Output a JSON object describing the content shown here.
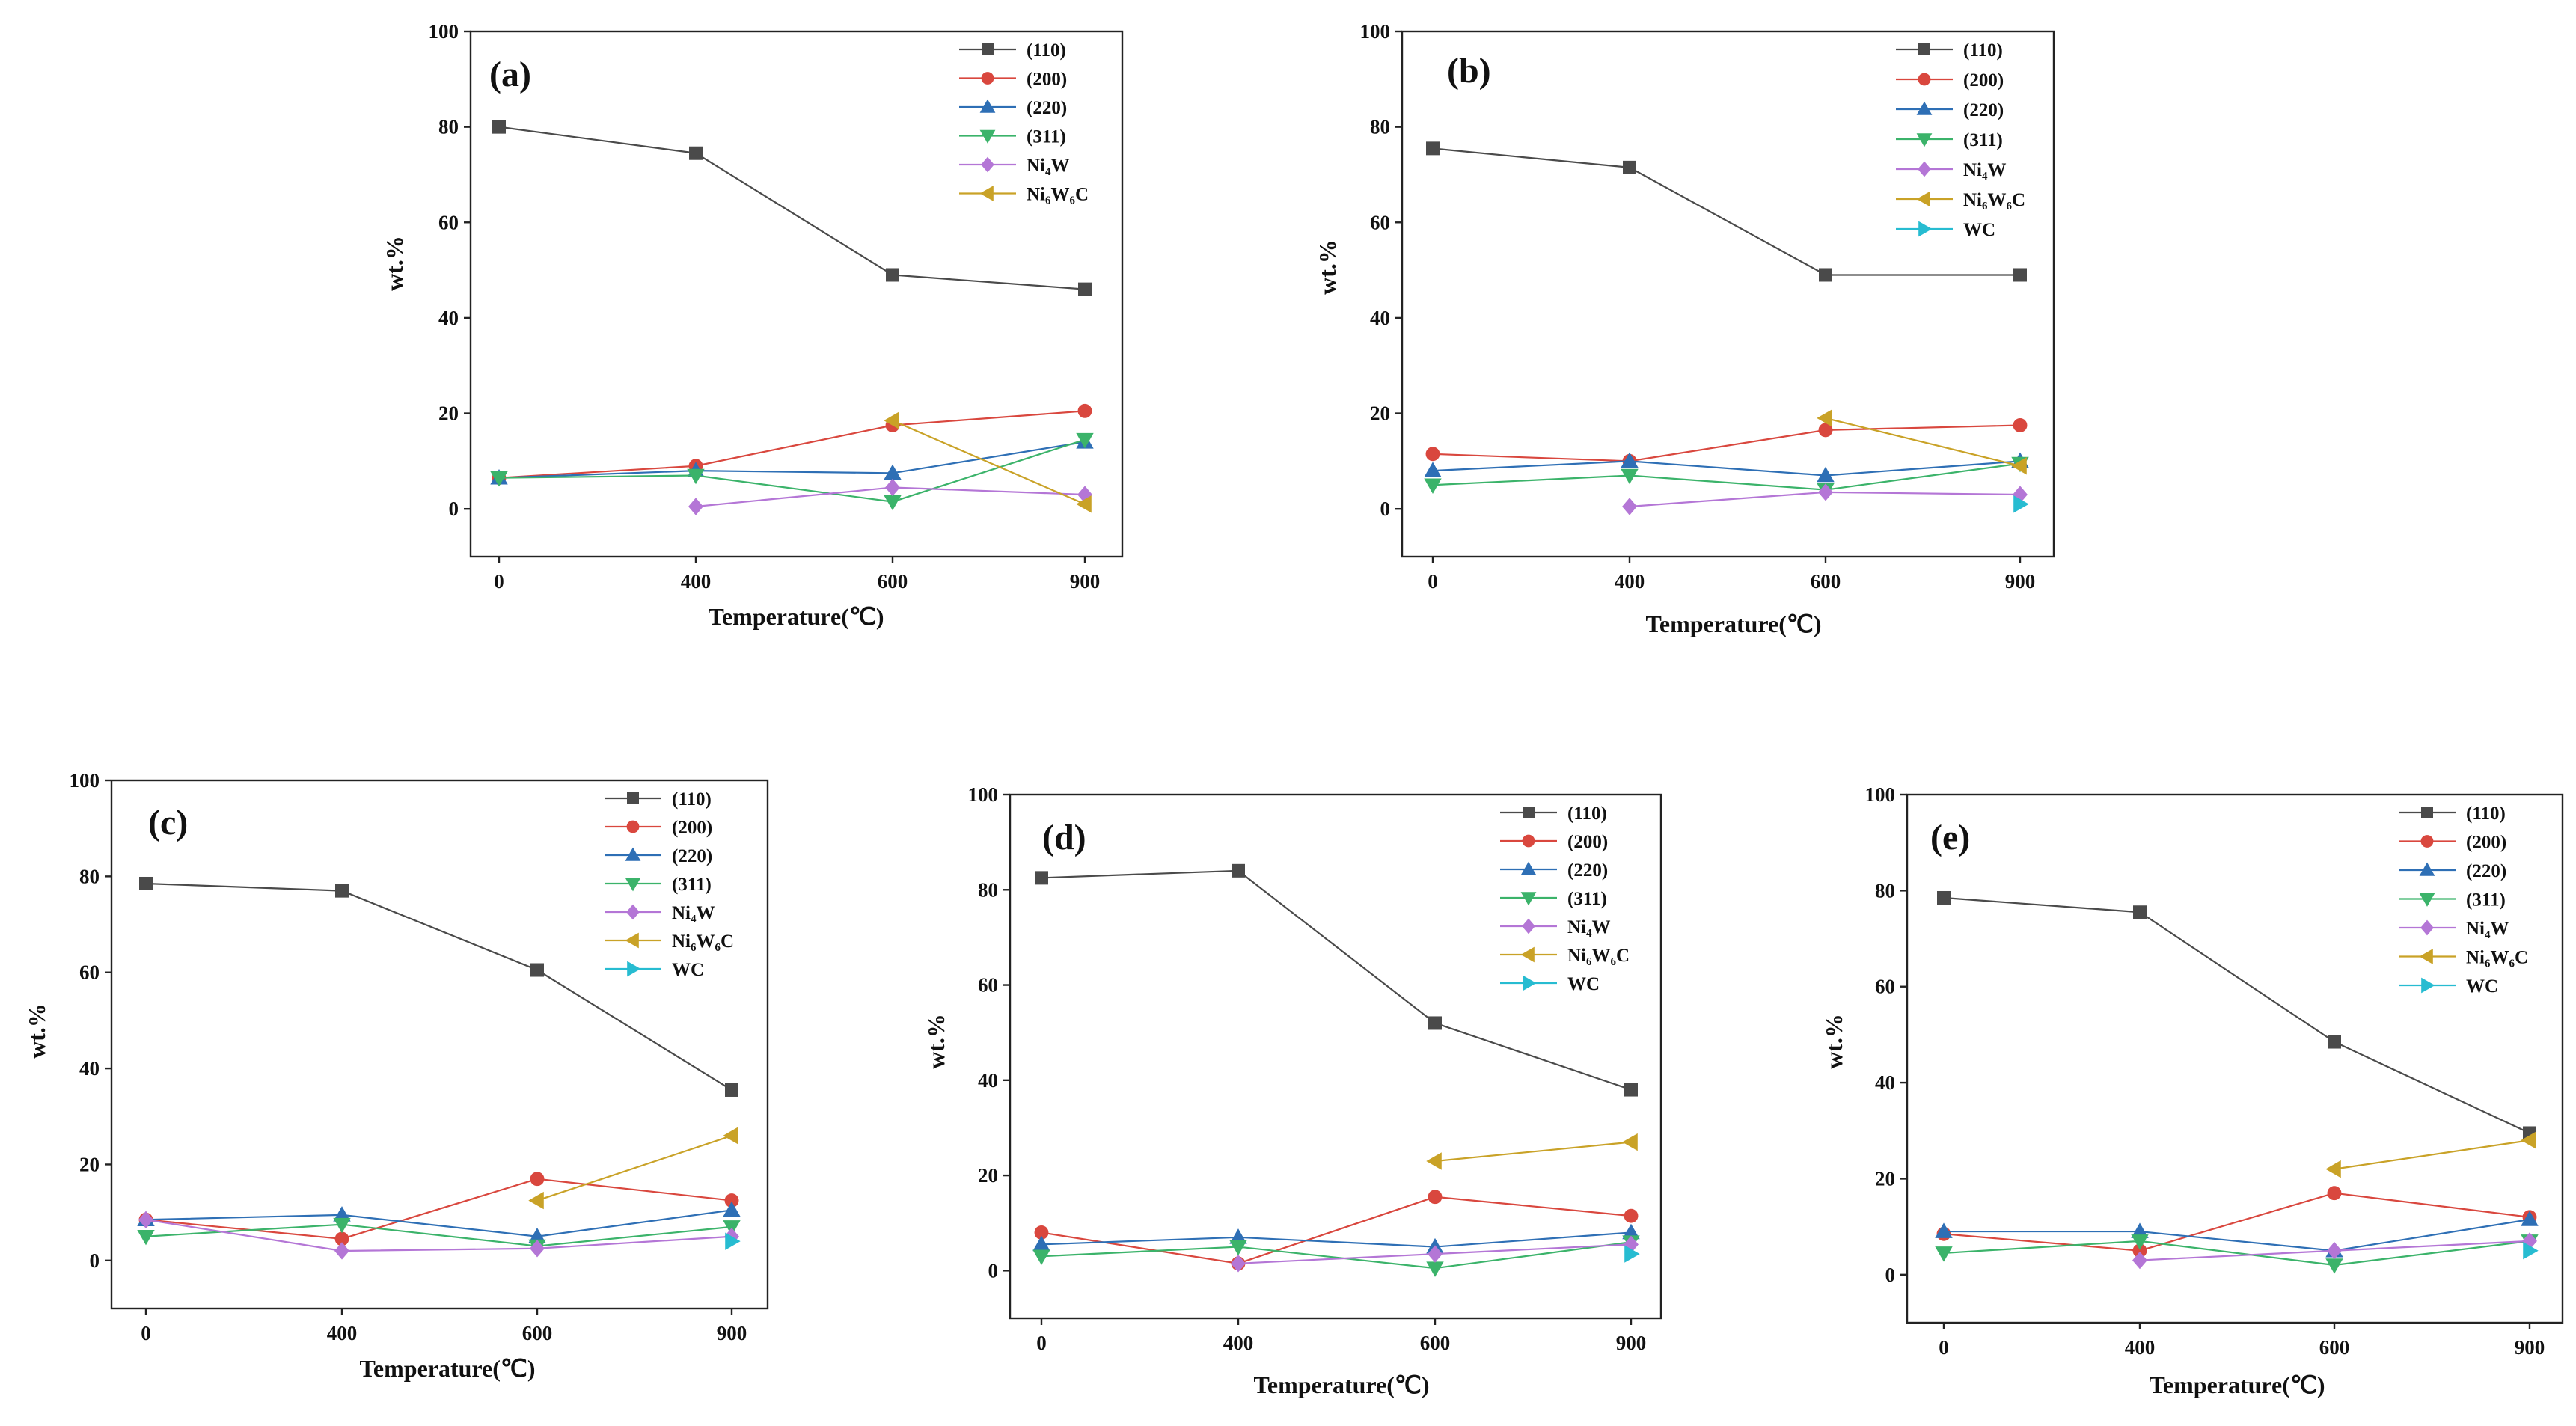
{
  "chart_data": [
    {
      "type": "line",
      "panel_label": "(a)",
      "xlabel": "Temperature(℃)",
      "ylabel": "wt.%",
      "categories": [
        "0",
        "400",
        "600",
        "900"
      ],
      "ylim": [
        -10,
        100
      ],
      "yticks": [
        "0",
        "20",
        "40",
        "60",
        "80",
        "100"
      ],
      "series": [
        {
          "name": "(110)",
          "sub": "",
          "values": [
            80,
            74.5,
            49,
            46
          ]
        },
        {
          "name": "(200)",
          "sub": "",
          "values": [
            6.5,
            9,
            17.5,
            20.5
          ]
        },
        {
          "name": "(220)",
          "sub": "",
          "values": [
            6.5,
            8,
            7.5,
            14
          ]
        },
        {
          "name": "(311)",
          "sub": "",
          "values": [
            6.5,
            7,
            1.5,
            14.5
          ]
        },
        {
          "name": "Ni4W",
          "sub": "Ni₄W",
          "values": [
            null,
            0.5,
            4.5,
            3
          ]
        },
        {
          "name": "Ni6W6C",
          "sub": "Ni₆W₆C",
          "values": [
            null,
            null,
            18.5,
            1
          ]
        }
      ]
    },
    {
      "type": "line",
      "panel_label": "(b)",
      "xlabel": "Temperature(℃)",
      "ylabel": "wt.%",
      "categories": [
        "0",
        "400",
        "600",
        "900"
      ],
      "ylim": [
        -10,
        100
      ],
      "yticks": [
        "0",
        "20",
        "40",
        "60",
        "80",
        "100"
      ],
      "series": [
        {
          "name": "(110)",
          "sub": "",
          "values": [
            75.5,
            71.5,
            49,
            49
          ]
        },
        {
          "name": "(200)",
          "sub": "",
          "values": [
            11.5,
            10,
            16.5,
            17.5
          ]
        },
        {
          "name": "(220)",
          "sub": "",
          "values": [
            8,
            10,
            7,
            10
          ]
        },
        {
          "name": "(311)",
          "sub": "",
          "values": [
            5,
            7,
            4,
            9.5
          ]
        },
        {
          "name": "Ni4W",
          "sub": "Ni₄W",
          "values": [
            null,
            0.5,
            3.5,
            3
          ]
        },
        {
          "name": "Ni6W6C",
          "sub": "Ni₆W₆C",
          "values": [
            null,
            null,
            19,
            9
          ]
        },
        {
          "name": "WC",
          "sub": "",
          "values": [
            null,
            null,
            null,
            1
          ]
        }
      ]
    },
    {
      "type": "line",
      "panel_label": "(c)",
      "xlabel": "Temperature(℃)",
      "ylabel": "wt.%",
      "categories": [
        "0",
        "400",
        "600",
        "900"
      ],
      "ylim": [
        -10,
        100
      ],
      "yticks": [
        "0",
        "20",
        "40",
        "60",
        "80",
        "100"
      ],
      "series": [
        {
          "name": "(110)",
          "sub": "",
          "values": [
            78.5,
            77,
            60.5,
            35.5
          ]
        },
        {
          "name": "(200)",
          "sub": "",
          "values": [
            8.5,
            4.5,
            17,
            12.5
          ]
        },
        {
          "name": "(220)",
          "sub": "",
          "values": [
            8.5,
            9.5,
            5,
            10.5
          ]
        },
        {
          "name": "(311)",
          "sub": "",
          "values": [
            5,
            7.5,
            3,
            7
          ]
        },
        {
          "name": "Ni4W",
          "sub": "Ni₄W",
          "values": [
            8.5,
            2,
            2.5,
            5
          ]
        },
        {
          "name": "Ni6W6C",
          "sub": "Ni₆W₆C",
          "values": [
            null,
            null,
            12.5,
            26
          ]
        },
        {
          "name": "WC",
          "sub": "",
          "values": [
            null,
            null,
            null,
            4
          ]
        }
      ]
    },
    {
      "type": "line",
      "panel_label": "(d)",
      "xlabel": "Temperature(℃)",
      "ylabel": "wt.%",
      "categories": [
        "0",
        "400",
        "600",
        "900"
      ],
      "ylim": [
        -10,
        100
      ],
      "yticks": [
        "0",
        "20",
        "40",
        "60",
        "80",
        "100"
      ],
      "series": [
        {
          "name": "(110)",
          "sub": "",
          "values": [
            82.5,
            84,
            52,
            38
          ]
        },
        {
          "name": "(200)",
          "sub": "",
          "values": [
            8,
            1.5,
            15.5,
            11.5
          ]
        },
        {
          "name": "(220)",
          "sub": "",
          "values": [
            5.5,
            7,
            5,
            8
          ]
        },
        {
          "name": "(311)",
          "sub": "",
          "values": [
            3,
            5,
            0.5,
            6
          ]
        },
        {
          "name": "Ni4W",
          "sub": "Ni₄W",
          "values": [
            null,
            1.5,
            3.5,
            5.5
          ]
        },
        {
          "name": "Ni6W6C",
          "sub": "Ni₆W₆C",
          "values": [
            null,
            null,
            23,
            27
          ]
        },
        {
          "name": "WC",
          "sub": "",
          "values": [
            null,
            null,
            null,
            3.5
          ]
        }
      ]
    },
    {
      "type": "line",
      "panel_label": "(e)",
      "xlabel": "Temperature(℃)",
      "ylabel": "wt.%",
      "categories": [
        "0",
        "400",
        "600",
        "900"
      ],
      "ylim": [
        -10,
        100
      ],
      "yticks": [
        "0",
        "20",
        "40",
        "60",
        "80",
        "100"
      ],
      "series": [
        {
          "name": "(110)",
          "sub": "",
          "values": [
            78.5,
            75.5,
            48.5,
            29.5
          ]
        },
        {
          "name": "(200)",
          "sub": "",
          "values": [
            8.5,
            5,
            17,
            12
          ]
        },
        {
          "name": "(220)",
          "sub": "",
          "values": [
            9,
            9,
            5,
            11.5
          ]
        },
        {
          "name": "(311)",
          "sub": "",
          "values": [
            4.5,
            7,
            2,
            7
          ]
        },
        {
          "name": "Ni4W",
          "sub": "Ni₄W",
          "values": [
            null,
            3,
            5,
            7
          ]
        },
        {
          "name": "Ni6W6C",
          "sub": "Ni₆W₆C",
          "values": [
            null,
            null,
            22,
            28
          ]
        },
        {
          "name": "WC",
          "sub": "",
          "values": [
            null,
            null,
            null,
            5
          ]
        }
      ]
    }
  ],
  "series_style": {
    "(110)": {
      "color": "#4a4a4a",
      "marker": "square"
    },
    "(200)": {
      "color": "#d9473e",
      "marker": "circle"
    },
    "(220)": {
      "color": "#2e6fb5",
      "marker": "triangle-up"
    },
    "(311)": {
      "color": "#3bb36a",
      "marker": "triangle-down"
    },
    "Ni4W": {
      "color": "#b476d6",
      "marker": "diamond"
    },
    "Ni6W6C": {
      "color": "#c9a227",
      "marker": "triangle-left"
    },
    "WC": {
      "color": "#27bcd1",
      "marker": "triangle-right"
    }
  }
}
